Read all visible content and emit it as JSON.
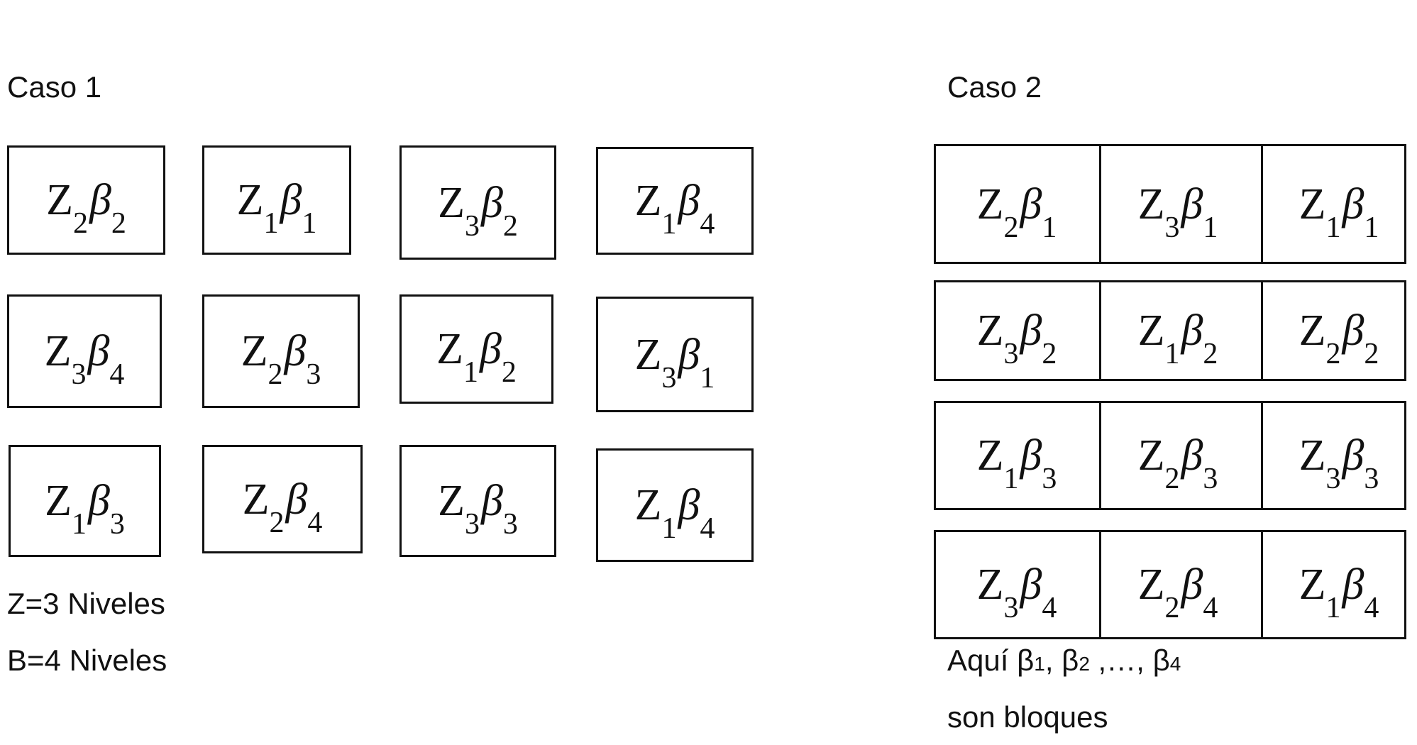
{
  "caso1": {
    "title": "Caso 1",
    "cells": [
      {
        "z": "2",
        "b": "2"
      },
      {
        "z": "1",
        "b": "1"
      },
      {
        "z": "3",
        "b": "2"
      },
      {
        "z": "1",
        "b": "4"
      },
      {
        "z": "3",
        "b": "4"
      },
      {
        "z": "2",
        "b": "3"
      },
      {
        "z": "1",
        "b": "2"
      },
      {
        "z": "3",
        "b": "1"
      },
      {
        "z": "1",
        "b": "3"
      },
      {
        "z": "2",
        "b": "4"
      },
      {
        "z": "3",
        "b": "3"
      },
      {
        "z": "1",
        "b": "4"
      }
    ],
    "notes": [
      "Z=3 Niveles",
      "B=4 Niveles"
    ]
  },
  "caso2": {
    "title": "Caso 2",
    "rows": [
      [
        {
          "z": "2",
          "b": "1"
        },
        {
          "z": "3",
          "b": "1"
        },
        {
          "z": "1",
          "b": "1"
        }
      ],
      [
        {
          "z": "3",
          "b": "2"
        },
        {
          "z": "1",
          "b": "2"
        },
        {
          "z": "2",
          "b": "2"
        }
      ],
      [
        {
          "z": "1",
          "b": "3"
        },
        {
          "z": "2",
          "b": "3"
        },
        {
          "z": "3",
          "b": "3"
        }
      ],
      [
        {
          "z": "3",
          "b": "4"
        },
        {
          "z": "2",
          "b": "4"
        },
        {
          "z": "1",
          "b": "4"
        }
      ]
    ],
    "note": {
      "lead": "Aquí β",
      "sub1": "1",
      "mid1": ", β",
      "sub2": "2",
      "mid2": " ,…, β",
      "sub3": "4",
      "line2": "son bloques"
    }
  },
  "symbols": {
    "z": "Z",
    "beta": "β"
  }
}
